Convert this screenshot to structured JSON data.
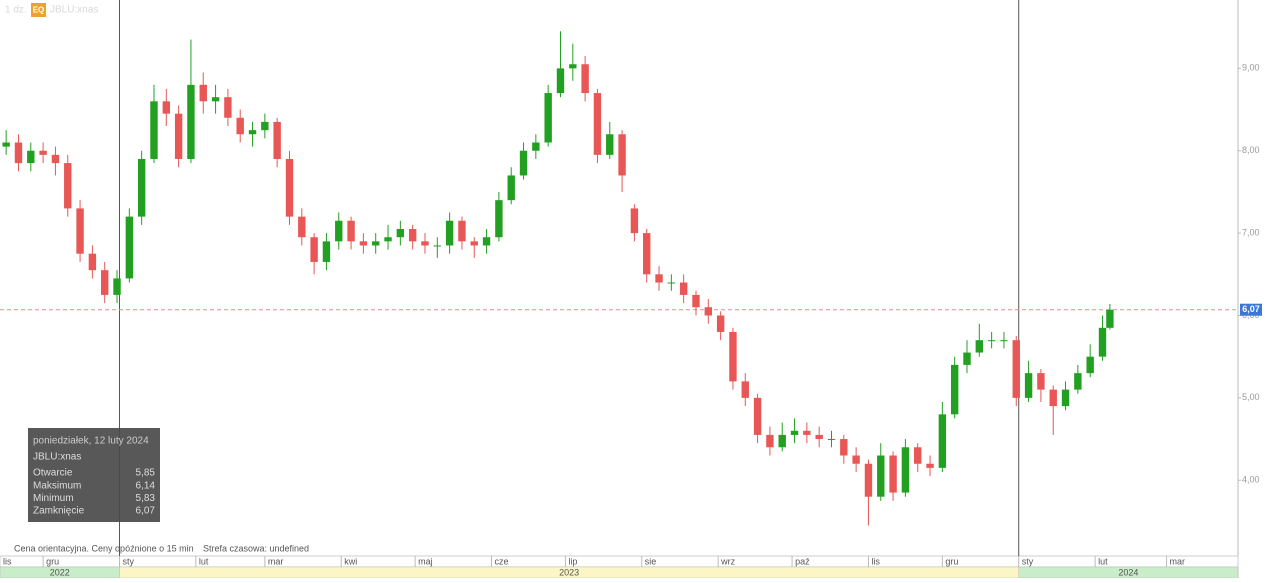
{
  "header": {
    "interval": "1 dz.",
    "badge": "EQ",
    "symbol": "JBLU:xnas"
  },
  "chart_data": {
    "type": "candlestick",
    "x": [
      -15,
      -10,
      -5,
      0,
      5,
      10,
      15,
      20,
      25,
      30,
      35,
      40,
      45,
      50,
      55,
      60,
      65,
      70,
      75,
      80,
      85,
      90,
      95,
      100,
      105,
      110,
      115,
      120,
      125,
      130,
      135,
      140,
      145,
      150,
      155,
      160,
      165,
      170,
      175,
      180,
      185,
      190,
      195,
      200,
      205,
      210,
      215,
      220,
      225,
      230,
      235,
      240,
      245,
      250,
      255,
      260,
      265,
      270,
      275,
      280,
      285,
      290,
      295,
      300,
      305,
      310,
      315,
      320,
      325,
      330,
      335,
      340,
      345,
      350,
      355,
      360,
      365,
      370,
      375,
      380,
      385,
      390,
      395,
      400,
      405,
      410,
      415,
      420,
      425,
      430,
      433
    ],
    "open": [
      8.05,
      8.1,
      7.85,
      8.0,
      7.95,
      7.85,
      7.3,
      6.75,
      6.55,
      6.25,
      6.45,
      7.2,
      7.9,
      8.6,
      8.45,
      7.9,
      8.8,
      8.6,
      8.65,
      8.4,
      8.2,
      8.25,
      8.35,
      7.9,
      7.2,
      6.95,
      6.65,
      6.9,
      7.15,
      6.9,
      6.85,
      6.9,
      6.95,
      7.05,
      6.9,
      6.85,
      6.85,
      7.15,
      6.9,
      6.85,
      6.95,
      7.4,
      7.7,
      8.0,
      8.1,
      8.7,
      9.0,
      9.05,
      8.7,
      7.95,
      8.2,
      7.3,
      7.0,
      6.5,
      6.4,
      6.4,
      6.25,
      6.1,
      6.0,
      5.8,
      5.2,
      5.0,
      4.55,
      4.4,
      4.55,
      4.6,
      4.55,
      4.5,
      4.5,
      4.3,
      4.2,
      3.8,
      4.3,
      3.85,
      4.4,
      4.2,
      4.15,
      4.8,
      5.4,
      5.55,
      5.7,
      5.7,
      5.7,
      5.0,
      5.3,
      5.1,
      4.9,
      5.1,
      5.3,
      5.5,
      5.85
    ],
    "high": [
      8.25,
      8.2,
      8.1,
      8.1,
      8.05,
      7.95,
      7.4,
      6.85,
      6.65,
      6.55,
      7.3,
      8.0,
      8.8,
      8.75,
      8.55,
      9.35,
      8.95,
      8.8,
      8.75,
      8.5,
      8.35,
      8.45,
      8.4,
      8.0,
      7.3,
      7.0,
      7.0,
      7.25,
      7.2,
      7.0,
      7.0,
      7.1,
      7.15,
      7.1,
      7.0,
      6.95,
      7.25,
      7.2,
      6.95,
      7.05,
      7.5,
      7.8,
      8.1,
      8.2,
      8.8,
      9.45,
      9.3,
      9.15,
      8.75,
      8.35,
      8.25,
      7.35,
      7.05,
      6.6,
      6.5,
      6.5,
      6.3,
      6.2,
      6.05,
      5.85,
      5.3,
      5.05,
      4.65,
      4.7,
      4.75,
      4.7,
      4.65,
      4.6,
      4.55,
      4.4,
      4.25,
      4.45,
      4.35,
      4.5,
      4.45,
      4.3,
      4.95,
      5.5,
      5.7,
      5.9,
      5.8,
      5.8,
      5.75,
      5.45,
      5.35,
      5.15,
      5.2,
      5.4,
      5.65,
      6.0,
      6.14
    ],
    "low": [
      7.95,
      7.75,
      7.75,
      7.85,
      7.7,
      7.2,
      6.65,
      6.45,
      6.15,
      6.15,
      6.4,
      7.1,
      7.85,
      8.3,
      7.8,
      7.85,
      8.45,
      8.45,
      8.3,
      8.1,
      8.05,
      8.15,
      7.8,
      7.1,
      6.85,
      6.5,
      6.55,
      6.8,
      6.8,
      6.75,
      6.75,
      6.8,
      6.85,
      6.8,
      6.75,
      6.7,
      6.75,
      6.8,
      6.7,
      6.75,
      6.9,
      7.35,
      7.65,
      7.9,
      8.05,
      8.65,
      8.85,
      8.6,
      7.85,
      7.9,
      7.5,
      6.9,
      6.4,
      6.3,
      6.3,
      6.15,
      6.0,
      5.9,
      5.7,
      5.1,
      4.9,
      4.45,
      4.3,
      4.35,
      4.45,
      4.45,
      4.4,
      4.4,
      4.2,
      4.1,
      3.45,
      3.75,
      3.75,
      3.8,
      4.1,
      4.05,
      4.1,
      4.75,
      5.3,
      5.5,
      5.6,
      5.6,
      4.9,
      4.95,
      4.95,
      4.55,
      4.85,
      5.05,
      5.25,
      5.45,
      5.83
    ],
    "close": [
      8.1,
      7.85,
      8.0,
      7.95,
      7.85,
      7.3,
      6.75,
      6.55,
      6.25,
      6.45,
      7.2,
      7.9,
      8.6,
      8.45,
      7.9,
      8.8,
      8.6,
      8.65,
      8.4,
      8.2,
      8.25,
      8.35,
      7.9,
      7.2,
      6.95,
      6.65,
      6.9,
      7.15,
      6.9,
      6.85,
      6.9,
      6.95,
      7.05,
      6.9,
      6.85,
      6.85,
      7.15,
      6.9,
      6.85,
      6.95,
      7.4,
      7.7,
      8.0,
      8.1,
      8.7,
      9.0,
      9.05,
      8.7,
      7.95,
      8.2,
      7.7,
      7.0,
      6.5,
      6.4,
      6.4,
      6.25,
      6.1,
      6.0,
      5.8,
      5.2,
      5.0,
      4.55,
      4.4,
      4.55,
      4.6,
      4.55,
      4.5,
      4.5,
      4.3,
      4.2,
      3.8,
      4.3,
      3.85,
      4.4,
      4.2,
      4.15,
      4.8,
      5.4,
      5.55,
      5.7,
      5.7,
      5.7,
      5.0,
      5.3,
      5.1,
      4.9,
      5.1,
      5.3,
      5.5,
      5.85,
      6.07
    ],
    "up_color": "#22a022",
    "down_color": "#e85656",
    "xlim": [
      -17.5,
      485
    ],
    "xticks": [
      {
        "value": -30,
        "label": "lis"
      },
      {
        "value": 0,
        "label": "gru"
      },
      {
        "value": 31,
        "label": "sty"
      },
      {
        "value": 62,
        "label": "lut"
      },
      {
        "value": 90,
        "label": "mar"
      },
      {
        "value": 121,
        "label": "kwi"
      },
      {
        "value": 151,
        "label": "maj"
      },
      {
        "value": 182,
        "label": "cze"
      },
      {
        "value": 212,
        "label": "lip"
      },
      {
        "value": 243,
        "label": "sie"
      },
      {
        "value": 274,
        "label": "wrz"
      },
      {
        "value": 304,
        "label": "paź"
      },
      {
        "value": 335,
        "label": "lis"
      },
      {
        "value": 365,
        "label": "gru"
      },
      {
        "value": 396,
        "label": "sty"
      },
      {
        "value": 427,
        "label": "lut"
      },
      {
        "value": 456,
        "label": "mar"
      }
    ],
    "year_bands": [
      {
        "value": -30,
        "label": "2022"
      },
      {
        "value": 31,
        "label": "2023"
      },
      {
        "value": 396,
        "label": "2024"
      }
    ],
    "ylim": [
      3.08,
      9.83
    ],
    "yticks": [
      {
        "value": 4,
        "label": "4,00"
      },
      {
        "value": 5,
        "label": "5,00"
      },
      {
        "value": 6,
        "label": "6,00"
      },
      {
        "value": 7,
        "label": "7,00"
      },
      {
        "value": 8,
        "label": "8,00"
      },
      {
        "value": 9,
        "label": "9,00"
      }
    ],
    "last_price": {
      "value": 6.07,
      "label": "6,07"
    }
  },
  "tooltip": {
    "date": "poniedziałek, 12 luty 2024",
    "symbol": "JBLU:xnas",
    "rows": [
      {
        "label": "Otwarcie",
        "value": "5,85"
      },
      {
        "label": "Maksimum",
        "value": "6,14"
      },
      {
        "label": "Minimum",
        "value": "5,83"
      },
      {
        "label": "Zamknięcie",
        "value": "6,07"
      }
    ]
  },
  "footer": {
    "note": "Cena orientacyjna. Ceny opóźnione o 15 min",
    "timezone": "Strefa czasowa: undefined"
  }
}
